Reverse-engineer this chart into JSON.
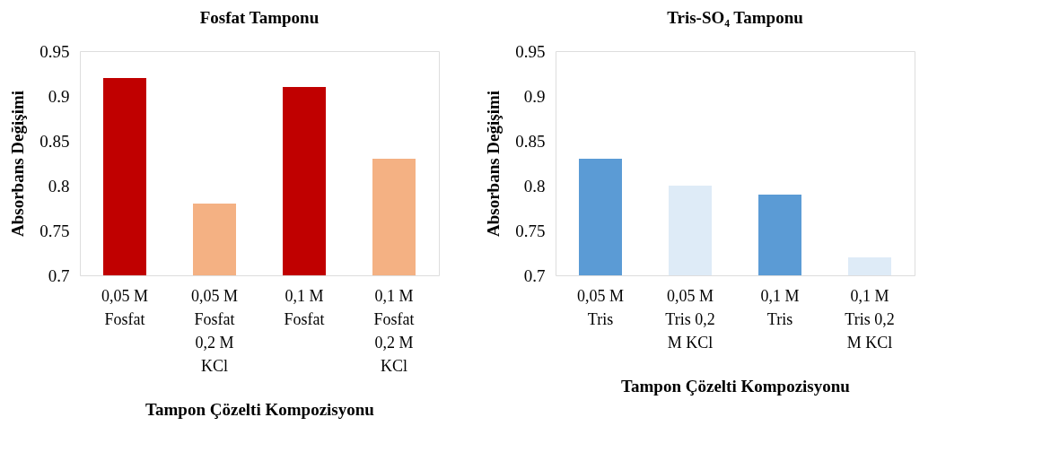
{
  "chart_data": [
    {
      "type": "bar",
      "title": "Fosfat Tamponu",
      "xlabel": "Tampon Çözelti Kompozisyonu",
      "ylabel": "Absorbans Değişimi",
      "categories": [
        "0,05 M Fosfat",
        "0,05 M Fosfat 0,2 M KCl",
        "0,1 M Fosfat",
        "0,1 M Fosfat 0,2 M KCl"
      ],
      "values": [
        0.92,
        0.78,
        0.91,
        0.83
      ],
      "colors": [
        "#c00000",
        "#f4b183",
        "#c00000",
        "#f4b183"
      ],
      "ylim": [
        0.7,
        0.95
      ],
      "yticks": [
        {
          "value": 0.7,
          "label": "0.7"
        },
        0.75,
        {
          "value": 0.8,
          "label": "0.8"
        },
        0.85,
        {
          "value": 0.9,
          "label": "0.9"
        },
        0.95
      ]
    },
    {
      "type": "bar",
      "title": "Tris-SO₄ Tamponu",
      "xlabel": "Tampon Çözelti Kompozisyonu",
      "ylabel": "Absorbans Değişimi",
      "categories": [
        "0,05 M Tris",
        "0,05 M Tris 0,2 M KCl",
        "0,1 M Tris",
        "0,1 M Tris 0,2 M KCl"
      ],
      "values": [
        0.83,
        0.8,
        0.79,
        0.72
      ],
      "colors": [
        "#5b9bd5",
        "#deebf7",
        "#5b9bd5",
        "#deebf7"
      ],
      "ylim": [
        0.7,
        0.95
      ],
      "yticks": [
        {
          "value": 0.7,
          "label": "0.7"
        },
        0.75,
        {
          "value": 0.8,
          "label": "0.8"
        },
        0.85,
        {
          "value": 0.9,
          "label": "0.9"
        },
        0.95
      ]
    }
  ]
}
